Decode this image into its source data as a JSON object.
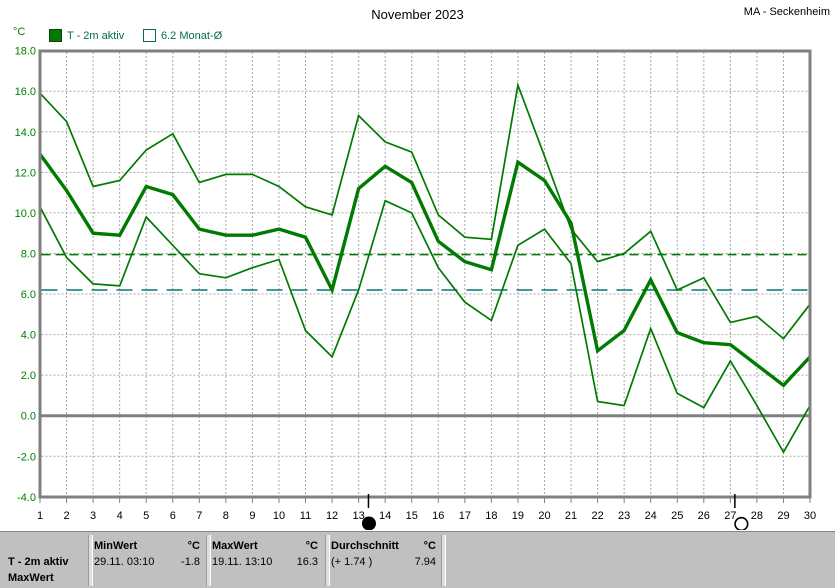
{
  "header": {
    "title": "November 2023",
    "station": "MA - Seckenheim"
  },
  "axes": {
    "unit_label": "°C"
  },
  "legend": [
    {
      "label": "T - 2m aktiv",
      "swatch": "filled-green-square"
    },
    {
      "label": "6.2 Monat-Ø",
      "swatch": "open-square"
    }
  ],
  "colors": {
    "series": "#007A00",
    "avg_line": "#007800",
    "month_avg_line": "#007878",
    "grid": "#a8a8a8",
    "axis": "#808080",
    "y_label": "#008000",
    "x_label": "#000000",
    "legend_text": "#007040"
  },
  "chart_data": {
    "type": "line",
    "title": "November 2023",
    "station": "MA - Seckenheim",
    "ylabel": "°C",
    "ylim": [
      -4,
      18
    ],
    "grid": true,
    "x": [
      1,
      2,
      3,
      4,
      5,
      6,
      7,
      8,
      9,
      10,
      11,
      12,
      13,
      14,
      15,
      16,
      17,
      18,
      19,
      20,
      21,
      22,
      23,
      24,
      25,
      26,
      27,
      28,
      29,
      30
    ],
    "x_tick_labels": [
      "1",
      "2",
      "3",
      "4",
      "5",
      "6",
      "7",
      "8",
      "9",
      "10",
      "11",
      "12",
      "13",
      "14",
      "15",
      "16",
      "17",
      "18",
      "19",
      "20",
      "21",
      "22",
      "23",
      "24",
      "25",
      "26",
      "27",
      "28",
      "29",
      "30"
    ],
    "y_tick_labels": [
      "18.0",
      "16.0",
      "14.0",
      "12.0",
      "10.0",
      "8.0",
      "6.0",
      "4.0",
      "2.0",
      "0.0",
      "-2.0",
      "-4.0"
    ],
    "grid_y": [
      16,
      14,
      12,
      10,
      8,
      6,
      4,
      2,
      -2
    ],
    "series": [
      {
        "id": "max",
        "name": "T - 2m aktiv Tagesmaximum",
        "values": [
          15.9,
          14.5,
          11.3,
          11.6,
          13.1,
          13.9,
          11.5,
          11.9,
          11.9,
          11.3,
          10.3,
          9.9,
          14.8,
          13.5,
          13.0,
          9.9,
          8.8,
          8.7,
          16.3,
          12.8,
          9.2,
          7.6,
          8.0,
          9.1,
          6.2,
          6.8,
          4.6,
          4.9,
          3.8,
          5.5
        ]
      },
      {
        "id": "mean",
        "name": "T - 2m aktiv Tagesmittel",
        "values": [
          12.9,
          11.1,
          9.0,
          8.9,
          11.3,
          10.9,
          9.2,
          8.9,
          8.9,
          9.2,
          8.8,
          6.2,
          11.2,
          12.3,
          11.5,
          8.6,
          7.6,
          7.2,
          12.5,
          11.6,
          9.5,
          3.2,
          4.2,
          6.7,
          4.1,
          3.6,
          3.5,
          2.5,
          1.5,
          2.9
        ]
      },
      {
        "id": "min",
        "name": "T - 2m aktiv Tagesminimum",
        "values": [
          10.3,
          7.8,
          6.5,
          6.4,
          9.8,
          8.4,
          7.0,
          6.8,
          7.3,
          7.7,
          4.2,
          2.9,
          6.2,
          10.6,
          10.0,
          7.3,
          5.6,
          4.7,
          8.4,
          9.2,
          7.5,
          0.7,
          0.5,
          4.3,
          1.1,
          0.4,
          2.7,
          0.5,
          -1.8,
          0.5
        ]
      }
    ],
    "reference_lines": [
      {
        "id": "durchschnitt",
        "label": "Durchschnitt aktueller Monat",
        "value": 7.94
      },
      {
        "id": "monat",
        "label": "6.2 Monat-Ø",
        "value": 6.2
      }
    ],
    "legend_position": "top-left"
  },
  "markers": [
    {
      "type": "full-moon",
      "day": 13.37
    },
    {
      "type": "new-moon",
      "day": 27.17
    }
  ],
  "table": {
    "row_label_top": "T - 2m aktiv",
    "row_label_bottom": "MaxWert",
    "cols": [
      {
        "header": "MinWert",
        "unit": "°C",
        "date": "29.11.  03:10",
        "value": "-1.8"
      },
      {
        "header": "MaxWert",
        "unit": "°C",
        "date": "19.11.  13:10",
        "value": "16.3"
      },
      {
        "header": "Durchschnitt",
        "unit": "°C",
        "date": "(+ 1.74 )",
        "value": "7.94"
      }
    ]
  }
}
